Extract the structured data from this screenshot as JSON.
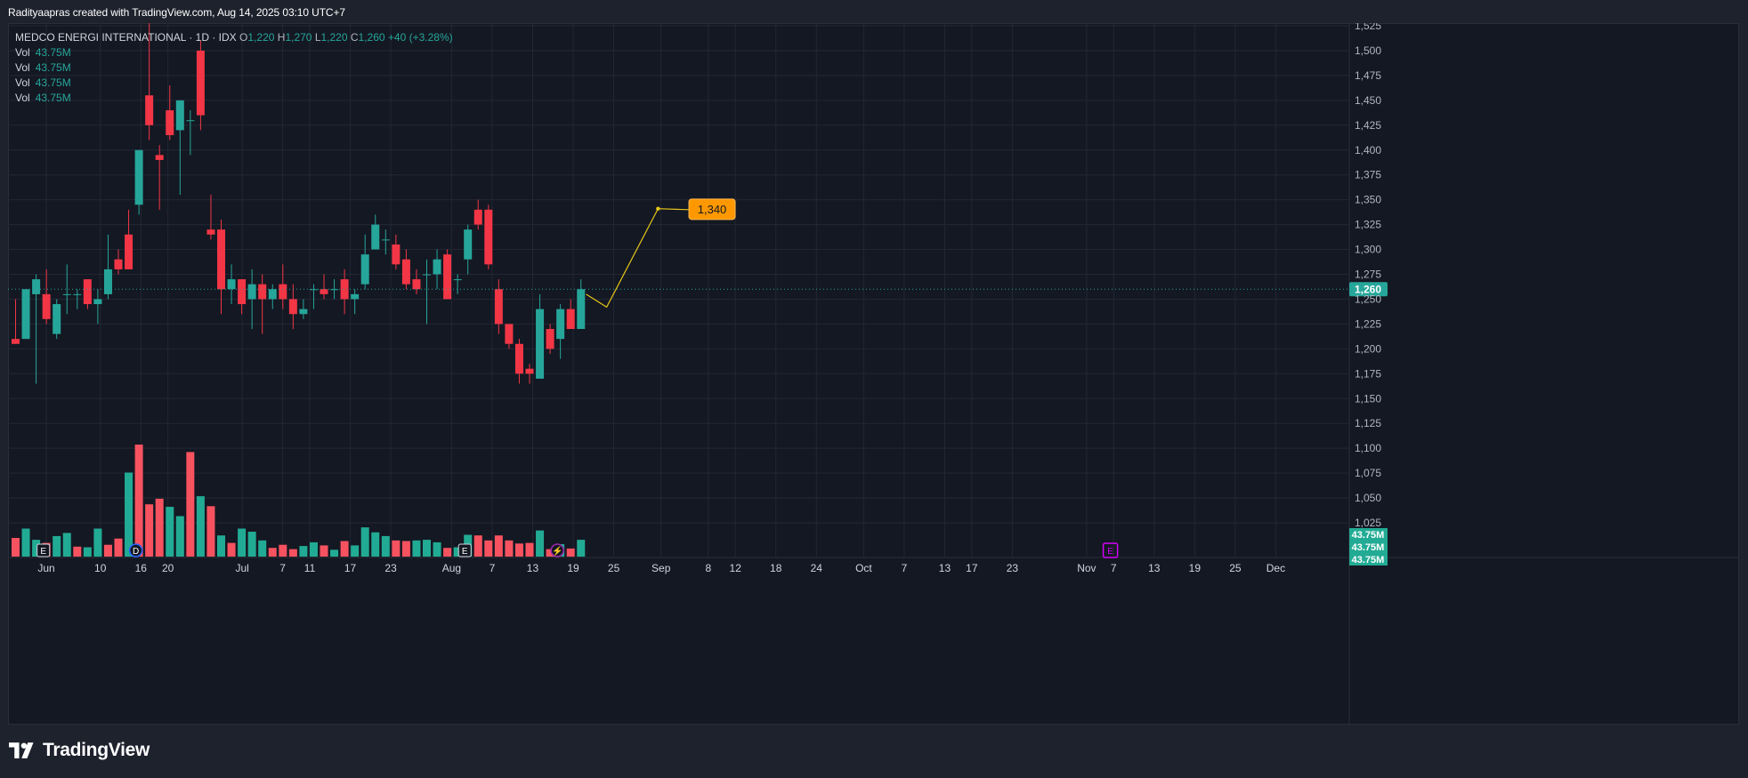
{
  "header": {
    "caption": "Radityaapras created with TradingView.com, Aug 14, 2025 03:10 UTC+7"
  },
  "legend": {
    "symbol": "MEDCO ENERGI INTERNATIONAL · 1D · IDX",
    "o_label": "O",
    "o_value": "1,220",
    "h_label": "H",
    "h_value": "1,270",
    "l_label": "L",
    "l_value": "1,220",
    "c_label": "C",
    "c_value": "1,260",
    "change": "+40 (+3.28%)",
    "vol_rows": [
      {
        "label": "Vol",
        "value": "43.75M"
      },
      {
        "label": "Vol",
        "value": "43.75M"
      },
      {
        "label": "Vol",
        "value": "43.75M"
      },
      {
        "label": "Vol",
        "value": "43.75M"
      }
    ]
  },
  "brand": {
    "name": "TradingView"
  },
  "colors": {
    "up": "#26a69a",
    "down": "#f23645",
    "vol_up": "#22ab94",
    "vol_down": "#f7525f",
    "projection": "#e6c619",
    "target_label_bg": "#ff9800",
    "grid": "#232734",
    "event_earnings": "#d1d4dc",
    "event_dividend": "#2962ff",
    "event_split": "#9c27b0"
  },
  "chart_data": {
    "type": "candlestick",
    "title": "MEDCO ENERGI INTERNATIONAL · 1D · IDX",
    "grid": true,
    "y_axis": {
      "ylim": [
        1000,
        1530
      ],
      "ticks": [
        "1,025",
        "1,050",
        "1,075",
        "1,100",
        "1,125",
        "1,150",
        "1,175",
        "1,200",
        "1,225",
        "1,250",
        "1,275",
        "1,300",
        "1,325",
        "1,350",
        "1,375",
        "1,400",
        "1,425",
        "1,450",
        "1,475",
        "1,500",
        "1,525"
      ],
      "tick_values": [
        1025,
        1050,
        1075,
        1100,
        1125,
        1150,
        1175,
        1200,
        1225,
        1250,
        1275,
        1300,
        1325,
        1350,
        1375,
        1400,
        1425,
        1450,
        1475,
        1500,
        1525
      ]
    },
    "x_axis": {
      "ticks": [
        {
          "label": "Jun",
          "date": "2025-06-02"
        },
        {
          "label": "10",
          "date": "2025-06-10"
        },
        {
          "label": "16",
          "date": "2025-06-16"
        },
        {
          "label": "20",
          "date": "2025-06-20"
        },
        {
          "label": "Jul",
          "date": "2025-07-01"
        },
        {
          "label": "7",
          "date": "2025-07-07"
        },
        {
          "label": "11",
          "date": "2025-07-11"
        },
        {
          "label": "17",
          "date": "2025-07-17"
        },
        {
          "label": "23",
          "date": "2025-07-23"
        },
        {
          "label": "Aug",
          "date": "2025-08-01"
        },
        {
          "label": "7",
          "date": "2025-08-07"
        },
        {
          "label": "13",
          "date": "2025-08-13"
        },
        {
          "label": "19",
          "date": "2025-08-19"
        },
        {
          "label": "25",
          "date": "2025-08-25"
        },
        {
          "label": "Sep",
          "date": "2025-09-01"
        },
        {
          "label": "8",
          "date": "2025-09-08"
        },
        {
          "label": "12",
          "date": "2025-09-12"
        },
        {
          "label": "18",
          "date": "2025-09-18"
        },
        {
          "label": "24",
          "date": "2025-09-24"
        },
        {
          "label": "Oct",
          "date": "2025-10-01"
        },
        {
          "label": "7",
          "date": "2025-10-07"
        },
        {
          "label": "13",
          "date": "2025-10-13"
        },
        {
          "label": "17",
          "date": "2025-10-17"
        },
        {
          "label": "23",
          "date": "2025-10-23"
        },
        {
          "label": "Nov",
          "date": "2025-11-03"
        },
        {
          "label": "7",
          "date": "2025-11-07"
        },
        {
          "label": "13",
          "date": "2025-11-13"
        },
        {
          "label": "19",
          "date": "2025-11-19"
        },
        {
          "label": "25",
          "date": "2025-11-25"
        },
        {
          "label": "Dec",
          "date": "2025-12-01"
        }
      ]
    },
    "candles": [
      {
        "o": 1210,
        "h": 1250,
        "l": 1205,
        "c": 1205
      },
      {
        "o": 1210,
        "h": 1260,
        "l": 1210,
        "c": 1260
      },
      {
        "o": 1255,
        "h": 1275,
        "l": 1165,
        "c": 1270
      },
      {
        "o": 1255,
        "h": 1280,
        "l": 1225,
        "c": 1230
      },
      {
        "o": 1215,
        "h": 1250,
        "l": 1210,
        "c": 1245
      },
      {
        "o": 1255,
        "h": 1285,
        "l": 1235,
        "c": 1255
      },
      {
        "o": 1255,
        "h": 1260,
        "l": 1240,
        "c": 1255
      },
      {
        "o": 1270,
        "h": 1270,
        "l": 1240,
        "c": 1245
      },
      {
        "o": 1245,
        "h": 1260,
        "l": 1225,
        "c": 1250
      },
      {
        "o": 1255,
        "h": 1315,
        "l": 1250,
        "c": 1280
      },
      {
        "o": 1290,
        "h": 1300,
        "l": 1275,
        "c": 1280
      },
      {
        "o": 1315,
        "h": 1340,
        "l": 1280,
        "c": 1280
      },
      {
        "o": 1345,
        "h": 1400,
        "l": 1335,
        "c": 1400
      },
      {
        "o": 1455,
        "h": 1530,
        "l": 1410,
        "c": 1425
      },
      {
        "o": 1395,
        "h": 1405,
        "l": 1340,
        "c": 1390
      },
      {
        "o": 1440,
        "h": 1465,
        "l": 1410,
        "c": 1415
      },
      {
        "o": 1420,
        "h": 1450,
        "l": 1355,
        "c": 1450
      },
      {
        "o": 1430,
        "h": 1440,
        "l": 1395,
        "c": 1430
      },
      {
        "o": 1500,
        "h": 1510,
        "l": 1420,
        "c": 1435
      },
      {
        "o": 1320,
        "h": 1355,
        "l": 1310,
        "c": 1315
      },
      {
        "o": 1320,
        "h": 1330,
        "l": 1235,
        "c": 1260
      },
      {
        "o": 1260,
        "h": 1285,
        "l": 1245,
        "c": 1270
      },
      {
        "o": 1270,
        "h": 1270,
        "l": 1235,
        "c": 1245
      },
      {
        "o": 1250,
        "h": 1280,
        "l": 1220,
        "c": 1265
      },
      {
        "o": 1265,
        "h": 1275,
        "l": 1215,
        "c": 1250
      },
      {
        "o": 1250,
        "h": 1265,
        "l": 1240,
        "c": 1260
      },
      {
        "o": 1265,
        "h": 1285,
        "l": 1240,
        "c": 1250
      },
      {
        "o": 1250,
        "h": 1265,
        "l": 1220,
        "c": 1235
      },
      {
        "o": 1235,
        "h": 1250,
        "l": 1230,
        "c": 1240
      },
      {
        "o": 1260,
        "h": 1265,
        "l": 1240,
        "c": 1260
      },
      {
        "o": 1260,
        "h": 1275,
        "l": 1250,
        "c": 1255
      },
      {
        "o": 1260,
        "h": 1270,
        "l": 1250,
        "c": 1260
      },
      {
        "o": 1270,
        "h": 1280,
        "l": 1235,
        "c": 1250
      },
      {
        "o": 1250,
        "h": 1260,
        "l": 1235,
        "c": 1255
      },
      {
        "o": 1265,
        "h": 1315,
        "l": 1260,
        "c": 1295
      },
      {
        "o": 1300,
        "h": 1335,
        "l": 1300,
        "c": 1325
      },
      {
        "o": 1310,
        "h": 1320,
        "l": 1295,
        "c": 1310
      },
      {
        "o": 1305,
        "h": 1315,
        "l": 1280,
        "c": 1285
      },
      {
        "o": 1290,
        "h": 1300,
        "l": 1260,
        "c": 1265
      },
      {
        "o": 1270,
        "h": 1280,
        "l": 1255,
        "c": 1260
      },
      {
        "o": 1275,
        "h": 1290,
        "l": 1225,
        "c": 1275
      },
      {
        "o": 1275,
        "h": 1300,
        "l": 1260,
        "c": 1290
      },
      {
        "o": 1295,
        "h": 1300,
        "l": 1250,
        "c": 1250
      },
      {
        "o": 1270,
        "h": 1275,
        "l": 1255,
        "c": 1270
      },
      {
        "o": 1290,
        "h": 1325,
        "l": 1275,
        "c": 1320
      },
      {
        "o": 1340,
        "h": 1350,
        "l": 1320,
        "c": 1325
      },
      {
        "o": 1340,
        "h": 1345,
        "l": 1280,
        "c": 1285
      },
      {
        "o": 1260,
        "h": 1270,
        "l": 1215,
        "c": 1225
      },
      {
        "o": 1225,
        "h": 1225,
        "l": 1200,
        "c": 1205
      },
      {
        "o": 1205,
        "h": 1210,
        "l": 1165,
        "c": 1175
      },
      {
        "o": 1180,
        "h": 1185,
        "l": 1165,
        "c": 1175
      },
      {
        "o": 1170,
        "h": 1255,
        "l": 1170,
        "c": 1240
      },
      {
        "o": 1220,
        "h": 1225,
        "l": 1195,
        "c": 1200
      },
      {
        "o": 1210,
        "h": 1245,
        "l": 1190,
        "c": 1240
      },
      {
        "o": 1240,
        "h": 1250,
        "l": 1220,
        "c": 1220
      },
      {
        "o": 1220,
        "h": 1270,
        "l": 1220,
        "c": 1260
      }
    ],
    "volume": [
      {
        "v": 0.3,
        "up": false
      },
      {
        "v": 0.45,
        "up": true
      },
      {
        "v": 0.27,
        "up": true
      },
      {
        "v": 0.22,
        "up": false
      },
      {
        "v": 0.33,
        "up": true
      },
      {
        "v": 0.38,
        "up": true
      },
      {
        "v": 0.16,
        "up": false
      },
      {
        "v": 0.15,
        "up": true
      },
      {
        "v": 0.45,
        "up": true
      },
      {
        "v": 0.19,
        "up": false
      },
      {
        "v": 0.29,
        "up": false
      },
      {
        "v": 1.35,
        "up": true
      },
      {
        "v": 1.8,
        "up": false
      },
      {
        "v": 0.84,
        "up": false
      },
      {
        "v": 0.93,
        "up": false
      },
      {
        "v": 0.8,
        "up": true
      },
      {
        "v": 0.65,
        "up": true
      },
      {
        "v": 1.68,
        "up": false
      },
      {
        "v": 0.97,
        "up": true
      },
      {
        "v": 0.81,
        "up": false
      },
      {
        "v": 0.34,
        "up": true
      },
      {
        "v": 0.22,
        "up": false
      },
      {
        "v": 0.45,
        "up": true
      },
      {
        "v": 0.4,
        "up": true
      },
      {
        "v": 0.26,
        "up": true
      },
      {
        "v": 0.14,
        "up": false
      },
      {
        "v": 0.19,
        "up": false
      },
      {
        "v": 0.12,
        "up": false
      },
      {
        "v": 0.17,
        "up": true
      },
      {
        "v": 0.23,
        "up": true
      },
      {
        "v": 0.18,
        "up": false
      },
      {
        "v": 0.11,
        "up": true
      },
      {
        "v": 0.25,
        "up": false
      },
      {
        "v": 0.18,
        "up": true
      },
      {
        "v": 0.47,
        "up": true
      },
      {
        "v": 0.39,
        "up": true
      },
      {
        "v": 0.33,
        "up": true
      },
      {
        "v": 0.26,
        "up": false
      },
      {
        "v": 0.25,
        "up": false
      },
      {
        "v": 0.26,
        "up": true
      },
      {
        "v": 0.27,
        "up": true
      },
      {
        "v": 0.23,
        "up": true
      },
      {
        "v": 0.14,
        "up": false
      },
      {
        "v": 0.15,
        "up": true
      },
      {
        "v": 0.35,
        "up": true
      },
      {
        "v": 0.34,
        "up": false
      },
      {
        "v": 0.26,
        "up": false
      },
      {
        "v": 0.34,
        "up": false
      },
      {
        "v": 0.26,
        "up": false
      },
      {
        "v": 0.21,
        "up": false
      },
      {
        "v": 0.22,
        "up": false
      },
      {
        "v": 0.42,
        "up": true
      },
      {
        "v": 0.12,
        "up": false
      },
      {
        "v": 0.2,
        "up": true
      },
      {
        "v": 0.13,
        "up": false
      },
      {
        "v": 0.27,
        "up": true
      }
    ],
    "last_price": {
      "value": 1260,
      "label": "1,260"
    },
    "volume_labels": [
      "43.75M",
      "43.75M",
      "43.75M"
    ],
    "projection": {
      "points": [
        {
          "bar": 55.5,
          "price": 1255
        },
        {
          "bar": 57.5,
          "price": 1242
        },
        {
          "bar": 62.5,
          "price": 1341
        },
        {
          "bar": 65.5,
          "price": 1340
        }
      ],
      "target_label": "1,340"
    },
    "events": [
      {
        "bar": 2.7,
        "type": "earnings",
        "label": "E"
      },
      {
        "bar": 11.7,
        "type": "dividend",
        "label": "D"
      },
      {
        "bar": 43.7,
        "type": "earnings",
        "label": "E"
      },
      {
        "bar": 52.7,
        "type": "split",
        "label": "⚡"
      },
      {
        "bar": 106.5,
        "type": "earnings-future",
        "label": "E"
      }
    ]
  }
}
